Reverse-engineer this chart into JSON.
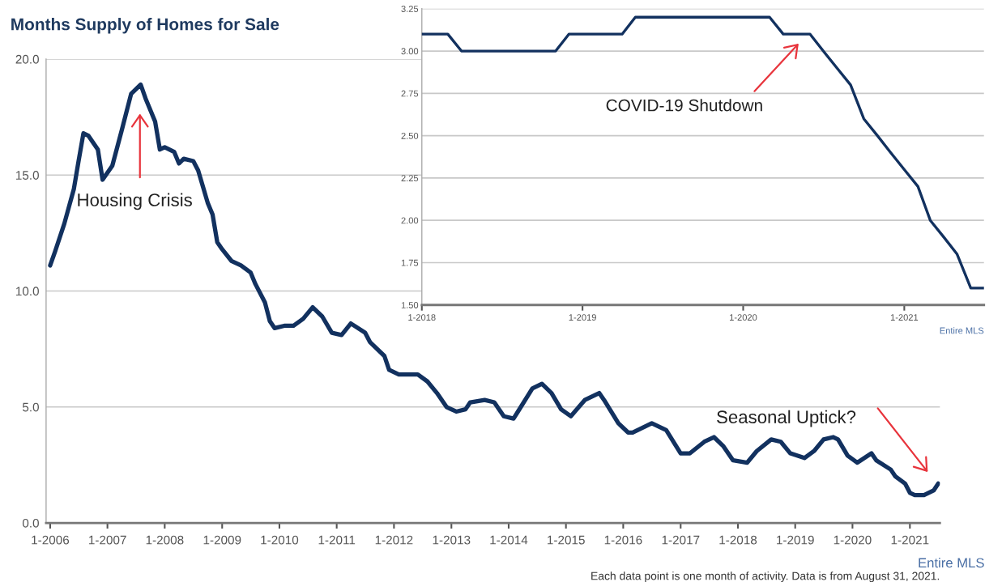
{
  "chart_data": [
    {
      "type": "line",
      "title": "Months Supply of Homes for Sale",
      "x": [
        "2006-01",
        "2006-02",
        "2006-04",
        "2006-06",
        "2006-07",
        "2006-08",
        "2006-09",
        "2006-11",
        "2006-12",
        "2007-02",
        "2007-04",
        "2007-06",
        "2007-08",
        "2007-09",
        "2007-11",
        "2007-12",
        "2008-01",
        "2008-03",
        "2008-04",
        "2008-05",
        "2008-07",
        "2008-08",
        "2008-10",
        "2008-11",
        "2008-12",
        "2009-01",
        "2009-03",
        "2009-05",
        "2009-07",
        "2009-08",
        "2009-10",
        "2009-11",
        "2009-12",
        "2010-02",
        "2010-04",
        "2010-06",
        "2010-08",
        "2010-10",
        "2010-12",
        "2011-02",
        "2011-04",
        "2011-07",
        "2011-08",
        "2011-11",
        "2011-12",
        "2012-02",
        "2012-06",
        "2012-08",
        "2012-10",
        "2012-12",
        "2013-02",
        "2013-04",
        "2013-05",
        "2013-08",
        "2013-10",
        "2013-12",
        "2014-02",
        "2014-03",
        "2014-06",
        "2014-08",
        "2014-10",
        "2014-12",
        "2015-02",
        "2015-05",
        "2015-08",
        "2015-09",
        "2015-12",
        "2016-02",
        "2016-03",
        "2016-05",
        "2016-07",
        "2016-10",
        "2017-01",
        "2017-03",
        "2017-06",
        "2017-08",
        "2017-10",
        "2017-12",
        "2018-03",
        "2018-05",
        "2018-08",
        "2018-10",
        "2018-12",
        "2019-03",
        "2019-05",
        "2019-07",
        "2019-09",
        "2019-10",
        "2019-12",
        "2020-02",
        "2020-05",
        "2020-06",
        "2020-09",
        "2020-10",
        "2020-12",
        "2021-01",
        "2021-02",
        "2021-04",
        "2021-06",
        "2021-07"
      ],
      "series": [
        {
          "color": "#12315f",
          "values": [
            11.1,
            11.7,
            12.9,
            14.4,
            15.6,
            16.8,
            16.7,
            16.1,
            14.8,
            15.4,
            16.9,
            18.5,
            18.9,
            18.3,
            17.3,
            16.1,
            16.2,
            16.0,
            15.5,
            15.7,
            15.6,
            15.2,
            13.8,
            13.3,
            12.1,
            11.8,
            11.3,
            11.1,
            10.8,
            10.3,
            9.5,
            8.7,
            8.4,
            8.5,
            8.5,
            8.8,
            9.3,
            8.9,
            8.2,
            8.1,
            8.6,
            8.2,
            7.8,
            7.2,
            6.6,
            6.4,
            6.4,
            6.1,
            5.6,
            5.0,
            4.8,
            4.9,
            5.2,
            5.3,
            5.2,
            4.6,
            4.5,
            4.8,
            5.8,
            6.0,
            5.6,
            4.9,
            4.6,
            5.3,
            5.6,
            5.3,
            4.3,
            3.9,
            3.9,
            4.1,
            4.3,
            4.0,
            3.0,
            3.0,
            3.5,
            3.7,
            3.3,
            2.7,
            2.6,
            3.1,
            3.6,
            3.5,
            3.0,
            2.8,
            3.1,
            3.6,
            3.7,
            3.6,
            2.9,
            2.6,
            3.0,
            2.7,
            2.3,
            2.0,
            1.7,
            1.3,
            1.2,
            1.2,
            1.4,
            1.7
          ]
        }
      ],
      "xlim": [
        "2005-12-20",
        "2021-07-25"
      ],
      "xticks": [
        {
          "value": "2006-01",
          "label": "1-2006"
        },
        {
          "value": "2007-01",
          "label": "1-2007"
        },
        {
          "value": "2008-01",
          "label": "1-2008"
        },
        {
          "value": "2009-01",
          "label": "1-2009"
        },
        {
          "value": "2010-01",
          "label": "1-2010"
        },
        {
          "value": "2011-01",
          "label": "1-2011"
        },
        {
          "value": "2012-01",
          "label": "1-2012"
        },
        {
          "value": "2013-01",
          "label": "1-2013"
        },
        {
          "value": "2014-01",
          "label": "1-2014"
        },
        {
          "value": "2015-01",
          "label": "1-2015"
        },
        {
          "value": "2016-01",
          "label": "1-2016"
        },
        {
          "value": "2017-01",
          "label": "1-2017"
        },
        {
          "value": "2018-01",
          "label": "1-2018"
        },
        {
          "value": "2019-01",
          "label": "1-2019"
        },
        {
          "value": "2020-01",
          "label": "1-2020"
        },
        {
          "value": "2021-01",
          "label": "1-2021"
        }
      ],
      "ylim": [
        0,
        20
      ],
      "yticks": [
        {
          "value": 0,
          "label": "0.0"
        },
        {
          "value": 5,
          "label": "5.0"
        },
        {
          "value": 10,
          "label": "10.0"
        },
        {
          "value": 15,
          "label": "15.0"
        },
        {
          "value": 20,
          "label": "20.0"
        }
      ],
      "grid": "y",
      "marker": "none",
      "line_style": "solid",
      "annotations": [
        "Housing Crisis",
        "Seasonal Uptick?",
        "Entire MLS",
        "Each data point is one month of activity. Data is from August 31, 2021."
      ]
    },
    {
      "type": "line",
      "x": [
        "2018-01",
        "2018-02",
        "2018-03",
        "2018-04",
        "2018-05",
        "2018-06",
        "2018-07",
        "2018-08",
        "2018-09",
        "2018-10",
        "2018-11",
        "2018-12",
        "2019-01",
        "2019-02",
        "2019-03",
        "2019-04",
        "2019-05",
        "2019-06",
        "2019-07",
        "2019-08",
        "2019-09",
        "2019-10",
        "2019-11",
        "2019-12",
        "2020-01",
        "2020-02",
        "2020-03",
        "2020-04",
        "2020-05",
        "2020-06",
        "2020-07",
        "2020-08",
        "2020-09",
        "2020-10",
        "2020-11",
        "2020-12",
        "2021-01",
        "2021-02",
        "2021-03",
        "2021-04",
        "2021-05",
        "2021-06",
        "2021-07"
      ],
      "series": [
        {
          "color": "#12315f",
          "values": [
            3.1,
            3.1,
            3.1,
            3.0,
            3.0,
            3.0,
            3.0,
            3.0,
            3.0,
            3.0,
            3.0,
            3.1,
            3.1,
            3.1,
            3.1,
            3.1,
            3.2,
            3.2,
            3.2,
            3.2,
            3.2,
            3.2,
            3.2,
            3.2,
            3.2,
            3.2,
            3.2,
            3.1,
            3.1,
            3.1,
            3.0,
            2.9,
            2.8,
            2.6,
            2.5,
            2.4,
            2.3,
            2.2,
            2.0,
            1.9,
            1.8,
            1.6,
            1.6
          ]
        }
      ],
      "xlim": [
        "2018-01",
        "2021-07"
      ],
      "xticks": [
        {
          "value": "2018-01",
          "label": "1-2018"
        },
        {
          "value": "2019-01",
          "label": "1-2019"
        },
        {
          "value": "2020-01",
          "label": "1-2020"
        },
        {
          "value": "2021-01",
          "label": "1-2021"
        }
      ],
      "ylim": [
        1.5,
        3.25
      ],
      "yticks": [
        {
          "value": 1.5,
          "label": "1.50"
        },
        1.75,
        {
          "value": 2.0,
          "label": "2.00"
        },
        2.25,
        {
          "value": 2.5,
          "label": "2.50"
        },
        2.75,
        {
          "value": 3.0,
          "label": "3.00"
        },
        3.25
      ],
      "grid": "y",
      "marker": "none",
      "line_style": "solid",
      "annotations": [
        "COVID-19 Shutdown",
        "Entire MLS"
      ]
    }
  ]
}
